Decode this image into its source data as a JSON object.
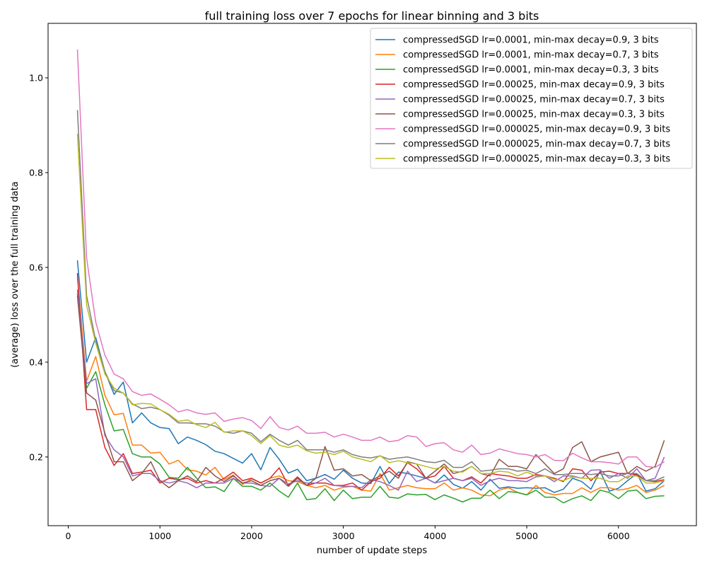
{
  "chart_data": {
    "type": "line",
    "title": "full training loss over 7 epochs for linear binning and 3 bits",
    "xlabel": "number of update steps",
    "ylabel": "(average) loss over the full training data",
    "xlim": [
      -220,
      6850
    ],
    "ylim": [
      0.055,
      1.115
    ],
    "xticks": [
      0,
      1000,
      2000,
      3000,
      4000,
      5000,
      6000
    ],
    "yticks": [
      0.2,
      0.4,
      0.6,
      0.8,
      1.0
    ],
    "xtick_labels": [
      "0",
      "1000",
      "2000",
      "3000",
      "4000",
      "5000",
      "6000"
    ],
    "ytick_labels": [
      "0.2",
      "0.4",
      "0.6",
      "0.8",
      "1.0"
    ],
    "grid": false,
    "legend_position": "top-right",
    "x": [
      100,
      200,
      300,
      400,
      500,
      600,
      700,
      800,
      900,
      1000,
      1100,
      1200,
      1300,
      1400,
      1500,
      1600,
      1700,
      1800,
      1900,
      2000,
      2100,
      2200,
      2300,
      2400,
      2500,
      2600,
      2700,
      2800,
      2900,
      3000,
      3100,
      3200,
      3300,
      3400,
      3500,
      3600,
      3700,
      3800,
      3900,
      4000,
      4100,
      4200,
      4300,
      4400,
      4500,
      4600,
      4700,
      4800,
      4900,
      5000,
      5100,
      5200,
      5300,
      5400,
      5500,
      5600,
      5700,
      5800,
      5900,
      6000,
      6100,
      6200,
      6300,
      6400,
      6500
    ],
    "series": [
      {
        "name": "compressedSGD lr=0.0001, min-max decay=0.9, 3 bits",
        "color": "#1f77b4",
        "values": [
          0.615,
          0.4,
          0.452,
          0.38,
          0.332,
          0.358,
          0.272,
          0.293,
          0.272,
          0.262,
          0.26,
          0.228,
          0.242,
          0.235,
          0.226,
          0.212,
          0.207,
          0.197,
          0.187,
          0.207,
          0.173,
          0.22,
          0.195,
          0.166,
          0.174,
          0.15,
          0.155,
          0.163,
          0.153,
          0.172,
          0.155,
          0.145,
          0.144,
          0.18,
          0.144,
          0.168,
          0.165,
          0.16,
          0.155,
          0.145,
          0.162,
          0.142,
          0.134,
          0.148,
          0.13,
          0.153,
          0.134,
          0.137,
          0.134,
          0.135,
          0.134,
          0.135,
          0.125,
          0.132,
          0.155,
          0.148,
          0.132,
          0.17,
          0.128,
          0.134,
          0.15,
          0.165,
          0.128,
          0.133,
          0.15
        ]
      },
      {
        "name": "compressedSGD lr=0.0001, min-max decay=0.7, 3 bits",
        "color": "#ff7f0e",
        "values": [
          0.58,
          0.36,
          0.412,
          0.33,
          0.289,
          0.292,
          0.225,
          0.225,
          0.208,
          0.21,
          0.185,
          0.193,
          0.173,
          0.17,
          0.162,
          0.178,
          0.152,
          0.162,
          0.142,
          0.154,
          0.145,
          0.155,
          0.16,
          0.15,
          0.148,
          0.14,
          0.135,
          0.14,
          0.13,
          0.136,
          0.138,
          0.13,
          0.128,
          0.165,
          0.13,
          0.135,
          0.14,
          0.135,
          0.133,
          0.133,
          0.145,
          0.13,
          0.135,
          0.13,
          0.12,
          0.118,
          0.13,
          0.135,
          0.125,
          0.12,
          0.14,
          0.125,
          0.12,
          0.123,
          0.123,
          0.135,
          0.125,
          0.135,
          0.135,
          0.13,
          0.133,
          0.14,
          0.125,
          0.13,
          0.14
        ]
      },
      {
        "name": "compressedSGD lr=0.0001, min-max decay=0.3, 3 bits",
        "color": "#2ca02c",
        "values": [
          0.545,
          0.345,
          0.38,
          0.31,
          0.255,
          0.258,
          0.207,
          0.2,
          0.2,
          0.185,
          0.157,
          0.155,
          0.178,
          0.155,
          0.135,
          0.137,
          0.127,
          0.155,
          0.138,
          0.138,
          0.13,
          0.145,
          0.128,
          0.115,
          0.145,
          0.11,
          0.112,
          0.133,
          0.108,
          0.13,
          0.112,
          0.115,
          0.115,
          0.138,
          0.115,
          0.113,
          0.122,
          0.12,
          0.121,
          0.11,
          0.12,
          0.113,
          0.105,
          0.113,
          0.113,
          0.13,
          0.112,
          0.127,
          0.125,
          0.12,
          0.13,
          0.115,
          0.115,
          0.103,
          0.112,
          0.118,
          0.108,
          0.13,
          0.125,
          0.112,
          0.128,
          0.13,
          0.112,
          0.117,
          0.118
        ]
      },
      {
        "name": "compressedSGD lr=0.00025, min-max decay=0.9, 3 bits",
        "color": "#d62728",
        "values": [
          0.588,
          0.3,
          0.3,
          0.22,
          0.182,
          0.207,
          0.165,
          0.168,
          0.172,
          0.145,
          0.155,
          0.152,
          0.155,
          0.145,
          0.15,
          0.145,
          0.155,
          0.168,
          0.15,
          0.155,
          0.145,
          0.155,
          0.177,
          0.14,
          0.158,
          0.14,
          0.145,
          0.145,
          0.14,
          0.14,
          0.145,
          0.13,
          0.148,
          0.155,
          0.178,
          0.16,
          0.188,
          0.175,
          0.155,
          0.16,
          0.18,
          0.155,
          0.15,
          0.158,
          0.145,
          0.165,
          0.162,
          0.16,
          0.155,
          0.155,
          0.163,
          0.16,
          0.155,
          0.148,
          0.175,
          0.172,
          0.15,
          0.168,
          0.17,
          0.165,
          0.165,
          0.162,
          0.15,
          0.148,
          0.152
        ]
      },
      {
        "name": "compressedSGD lr=0.00025, min-max decay=0.7, 3 bits",
        "color": "#9467bd",
        "values": [
          0.553,
          0.355,
          0.365,
          0.245,
          0.215,
          0.2,
          0.16,
          0.165,
          0.165,
          0.15,
          0.145,
          0.15,
          0.145,
          0.135,
          0.145,
          0.145,
          0.145,
          0.155,
          0.145,
          0.145,
          0.14,
          0.138,
          0.155,
          0.143,
          0.15,
          0.145,
          0.145,
          0.155,
          0.14,
          0.138,
          0.138,
          0.135,
          0.152,
          0.148,
          0.14,
          0.13,
          0.17,
          0.148,
          0.155,
          0.145,
          0.15,
          0.155,
          0.15,
          0.155,
          0.14,
          0.15,
          0.155,
          0.15,
          0.15,
          0.148,
          0.158,
          0.16,
          0.148,
          0.16,
          0.16,
          0.155,
          0.172,
          0.173,
          0.155,
          0.165,
          0.155,
          0.175,
          0.15,
          0.155,
          0.2
        ]
      },
      {
        "name": "compressedSGD lr=0.00025, min-max decay=0.3, 3 bits",
        "color": "#8c564b",
        "values": [
          0.54,
          0.335,
          0.32,
          0.25,
          0.19,
          0.19,
          0.15,
          0.165,
          0.19,
          0.15,
          0.135,
          0.15,
          0.16,
          0.148,
          0.178,
          0.16,
          0.148,
          0.16,
          0.145,
          0.15,
          0.14,
          0.15,
          0.155,
          0.138,
          0.155,
          0.14,
          0.155,
          0.222,
          0.172,
          0.175,
          0.16,
          0.163,
          0.15,
          0.16,
          0.17,
          0.155,
          0.19,
          0.185,
          0.155,
          0.17,
          0.185,
          0.165,
          0.17,
          0.18,
          0.165,
          0.16,
          0.195,
          0.18,
          0.18,
          0.175,
          0.205,
          0.185,
          0.165,
          0.175,
          0.22,
          0.232,
          0.19,
          0.2,
          0.205,
          0.21,
          0.165,
          0.18,
          0.17,
          0.18,
          0.235
        ]
      },
      {
        "name": "compressedSGD lr=0.000025, min-max decay=0.9, 3 bits",
        "color": "#e377c2",
        "values": [
          1.06,
          0.62,
          0.485,
          0.415,
          0.375,
          0.365,
          0.338,
          0.33,
          0.333,
          0.322,
          0.31,
          0.295,
          0.3,
          0.293,
          0.29,
          0.293,
          0.275,
          0.28,
          0.283,
          0.277,
          0.26,
          0.285,
          0.262,
          0.257,
          0.265,
          0.25,
          0.25,
          0.252,
          0.242,
          0.248,
          0.242,
          0.235,
          0.235,
          0.242,
          0.232,
          0.235,
          0.245,
          0.242,
          0.222,
          0.228,
          0.23,
          0.215,
          0.21,
          0.225,
          0.205,
          0.208,
          0.217,
          0.212,
          0.207,
          0.205,
          0.2,
          0.205,
          0.193,
          0.192,
          0.208,
          0.198,
          0.19,
          0.19,
          0.188,
          0.185,
          0.2,
          0.2,
          0.18,
          0.178,
          0.19
        ]
      },
      {
        "name": "compressedSGD lr=0.000025, min-max decay=0.7, 3 bits",
        "color": "#7f7f7f",
        "values": [
          0.932,
          0.54,
          0.445,
          0.38,
          0.34,
          0.335,
          0.312,
          0.302,
          0.305,
          0.3,
          0.288,
          0.272,
          0.272,
          0.27,
          0.27,
          0.265,
          0.253,
          0.25,
          0.255,
          0.25,
          0.232,
          0.248,
          0.235,
          0.225,
          0.235,
          0.215,
          0.215,
          0.215,
          0.21,
          0.215,
          0.205,
          0.2,
          0.198,
          0.202,
          0.195,
          0.198,
          0.2,
          0.195,
          0.19,
          0.188,
          0.193,
          0.178,
          0.178,
          0.19,
          0.17,
          0.172,
          0.175,
          0.175,
          0.17,
          0.172,
          0.165,
          0.175,
          0.163,
          0.163,
          0.165,
          0.165,
          0.163,
          0.165,
          0.16,
          0.16,
          0.165,
          0.165,
          0.15,
          0.15,
          0.158
        ]
      },
      {
        "name": "compressedSGD lr=0.000025, min-max decay=0.3, 3 bits",
        "color": "#bcbd22",
        "values": [
          0.882,
          0.52,
          0.44,
          0.375,
          0.345,
          0.335,
          0.31,
          0.313,
          0.312,
          0.3,
          0.29,
          0.275,
          0.278,
          0.268,
          0.262,
          0.273,
          0.252,
          0.255,
          0.255,
          0.245,
          0.228,
          0.245,
          0.225,
          0.22,
          0.225,
          0.213,
          0.208,
          0.21,
          0.205,
          0.212,
          0.2,
          0.195,
          0.19,
          0.203,
          0.188,
          0.192,
          0.188,
          0.185,
          0.18,
          0.175,
          0.18,
          0.17,
          0.168,
          0.18,
          0.165,
          0.165,
          0.17,
          0.168,
          0.16,
          0.168,
          0.16,
          0.16,
          0.153,
          0.15,
          0.158,
          0.155,
          0.155,
          0.155,
          0.148,
          0.148,
          0.16,
          0.16,
          0.145,
          0.145,
          0.15
        ]
      }
    ]
  }
}
